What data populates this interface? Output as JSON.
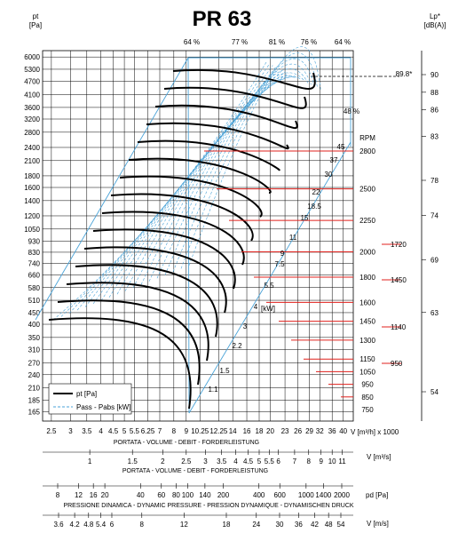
{
  "chart_data": {
    "type": "line",
    "title": "PR 63",
    "left_axis": {
      "unit_top": "pt",
      "unit_bottom": "[Pa]",
      "ticks": [
        "6000",
        "5300",
        "4700",
        "4100",
        "3600",
        "3200",
        "2800",
        "2400",
        "2100",
        "1800",
        "1600",
        "1400",
        "1200",
        "1050",
        "930",
        "830",
        "740",
        "660",
        "580",
        "510",
        "450",
        "400",
        "350",
        "310",
        "270",
        "240",
        "210",
        "185",
        "165"
      ],
      "range": [
        150,
        6400
      ],
      "scale": "log"
    },
    "right_axis": {
      "unit_top": "Lp*",
      "unit_bottom": "[dB(A)]",
      "ticks": [
        "90",
        "88",
        "86",
        "83",
        "78",
        "74",
        "69",
        "63",
        "54"
      ],
      "marker_value": "89.8*"
    },
    "x_axes": [
      {
        "ticks": [
          "2.5",
          "3",
          "3.5",
          "4",
          "4.5",
          "5",
          "5.5",
          "6.25",
          "7",
          "8",
          "9",
          "10.25",
          "12.25",
          "14",
          "16",
          "18",
          "20",
          "23",
          "26",
          "29",
          "32",
          "36",
          "40"
        ],
        "unit": "V [m³/h] x 1000",
        "label": "PORTATA - VOLUME - DEBIT - FORDERLEISTUNG"
      },
      {
        "ticks": [
          "1",
          "1.5",
          "2",
          "2.5",
          "3",
          "3.5",
          "4",
          "4.5",
          "5",
          "5.5",
          "6",
          "7",
          "8",
          "9",
          "10",
          "11"
        ],
        "unit": "V [m³/s]",
        "label": "PORTATA - VOLUME - DEBIT - FORDERLEISTUNG"
      },
      {
        "ticks": [
          "8",
          "12",
          "16",
          "20",
          "40",
          "60",
          "80",
          "100",
          "140",
          "200",
          "400",
          "600",
          "1000",
          "1400",
          "2000"
        ],
        "unit": "pd [Pa]",
        "label": "PRESSIONE DINAMICA - DYNAMIC PRESSURE - PRESSION DYNAMIQUE - DYNAMISCHEN DRUCK"
      },
      {
        "ticks": [
          "3.6",
          "4.2",
          "4.8",
          "5.4",
          "6",
          "8",
          "12",
          "18",
          "24",
          "30",
          "36",
          "42",
          "48",
          "54"
        ],
        "unit": "V [m/s]"
      }
    ],
    "rpm_header": "RPM",
    "rpm_values": [
      "2800",
      "2500",
      "2250",
      "2000",
      "1800",
      "1600",
      "1450",
      "1300",
      "1150",
      "1050",
      "950",
      "850",
      "750"
    ],
    "rpm_highlights": [
      "1720",
      "1450",
      "1140",
      "950"
    ],
    "power_unit": "[kW]",
    "power_labels": [
      "45",
      "37",
      "30",
      "22",
      "18.5",
      "15",
      "11",
      "9",
      "7.5",
      "5.5",
      "4",
      "3",
      "2.2",
      "1.5",
      "1.1"
    ],
    "efficiency_labels": [
      "64 %",
      "77 %",
      "81 %",
      "76 %",
      "64 %",
      "48 %"
    ],
    "series": [
      {
        "name": "pt [Pa]",
        "style": "solid"
      },
      {
        "name": "Pass - Pabs [kW]",
        "style": "dashed"
      }
    ],
    "colors": {
      "pressure": "#000000",
      "power": "#4aa3d8",
      "rpm": "#e0201c",
      "grid": "#000000"
    },
    "grid": true,
    "legend": "bottom-left"
  }
}
